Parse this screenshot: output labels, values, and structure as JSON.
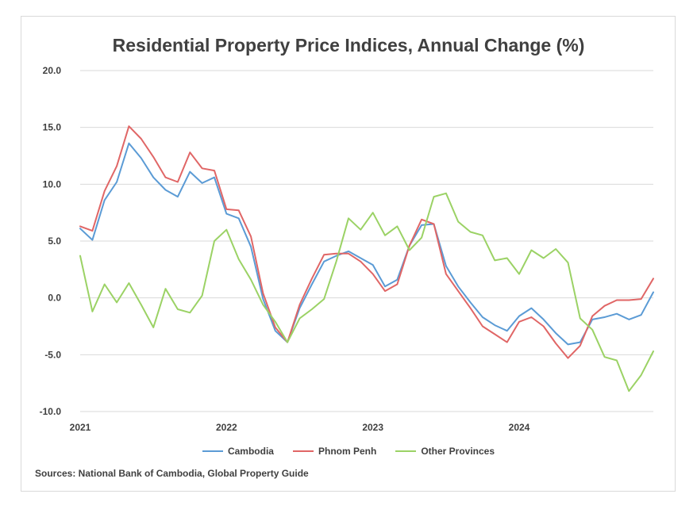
{
  "chart_data": {
    "type": "line",
    "title": "Residential Property Price Indices, Annual Change (%)",
    "source": "Sources: National Bank of Cambodia, Global Property Guide",
    "ylim": [
      -10,
      20
    ],
    "yticks": [
      "20.0",
      "15.0",
      "10.0",
      "5.0",
      "0.0",
      "-5.0",
      "-10.0"
    ],
    "ytick_values": [
      20,
      15,
      10,
      5,
      0,
      -5,
      -10
    ],
    "xticks": [
      {
        "label": "2021",
        "index": 0
      },
      {
        "label": "2022",
        "index": 12
      },
      {
        "label": "2023",
        "index": 24
      },
      {
        "label": "2024",
        "index": 36
      }
    ],
    "n_points": 48,
    "grid": true,
    "legend_position": "bottom",
    "series": [
      {
        "name": "Cambodia",
        "color": "#5b9bd5",
        "values": [
          6.1,
          5.1,
          8.6,
          10.2,
          13.6,
          12.3,
          10.6,
          9.5,
          8.9,
          11.1,
          10.1,
          10.6,
          7.4,
          7.0,
          4.5,
          -0.1,
          -2.9,
          -3.9,
          -0.9,
          1.2,
          3.2,
          3.7,
          4.1,
          3.5,
          2.9,
          1.0,
          1.6,
          4.6,
          6.4,
          6.5,
          2.8,
          1.0,
          -0.4,
          -1.7,
          -2.4,
          -2.9,
          -1.6,
          -0.9,
          -1.9,
          -3.1,
          -4.1,
          -3.9,
          -1.9,
          -1.7,
          -1.4,
          -1.9,
          -1.5,
          0.5
        ]
      },
      {
        "name": "Phnom Penh",
        "color": "#e06666",
        "values": [
          6.3,
          5.9,
          9.4,
          11.6,
          15.1,
          14.0,
          12.4,
          10.6,
          10.2,
          12.8,
          11.4,
          11.2,
          7.8,
          7.7,
          5.4,
          0.4,
          -2.6,
          -3.9,
          -0.6,
          1.7,
          3.8,
          3.9,
          3.9,
          3.2,
          2.1,
          0.6,
          1.2,
          4.6,
          6.9,
          6.5,
          2.1,
          0.6,
          -0.9,
          -2.5,
          -3.2,
          -3.9,
          -2.1,
          -1.7,
          -2.5,
          -4.0,
          -5.3,
          -4.2,
          -1.6,
          -0.7,
          -0.2,
          -0.2,
          -0.1,
          1.7
        ]
      },
      {
        "name": "Other Provinces",
        "color": "#9bd265",
        "values": [
          3.7,
          -1.2,
          1.2,
          -0.4,
          1.3,
          -0.6,
          -2.6,
          0.8,
          -1.0,
          -1.3,
          0.2,
          5.0,
          6.0,
          3.4,
          1.6,
          -0.6,
          -2.1,
          -3.9,
          -1.8,
          -1.0,
          -0.1,
          3.2,
          7.0,
          6.0,
          7.5,
          5.5,
          6.3,
          4.2,
          5.3,
          8.9,
          9.2,
          6.7,
          5.8,
          5.5,
          3.3,
          3.5,
          2.1,
          4.2,
          3.5,
          4.3,
          3.1,
          -1.8,
          -2.8,
          -5.2,
          -5.5,
          -8.2,
          -6.8,
          -4.7
        ]
      }
    ]
  }
}
